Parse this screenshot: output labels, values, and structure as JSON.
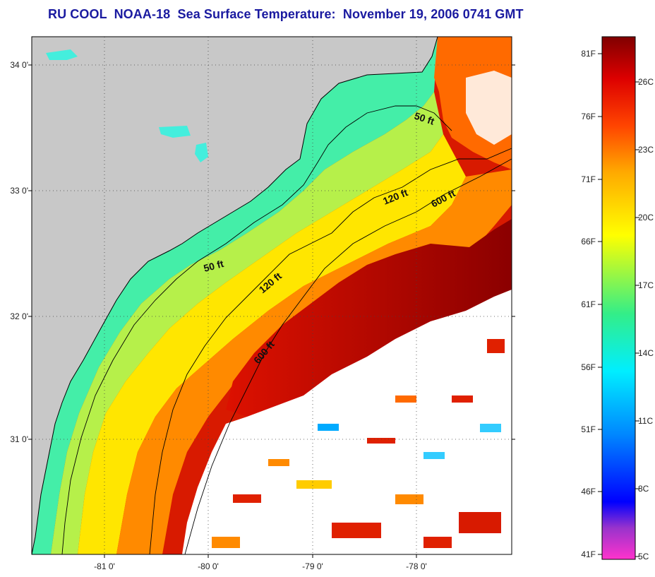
{
  "title": "RU COOL  NOAA-18  Sea Surface Temperature:  November 19, 2006 0741 GMT",
  "map": {
    "lat_labels": [
      "34 0'",
      "33 0'",
      "32 0'",
      "31 0'"
    ],
    "lon_labels": [
      "-81 0'",
      "-80 0'",
      "-79 0'",
      "-78 0'"
    ],
    "isobath_labels": {
      "ft50_north": "50 ft",
      "ft50_south": "50 ft",
      "ft120_north": "120 ft",
      "ft120_south": "120 ft",
      "ft600_north": "600 ft",
      "ft600_south": "600 ft"
    },
    "colors": {
      "land": "#c8c8c8",
      "cloud": "#ffffff",
      "coastline": "#000000"
    }
  },
  "colorbar": {
    "fahrenheit_labels": [
      "81F",
      "76F",
      "71F",
      "66F",
      "61F",
      "56F",
      "51F",
      "46F",
      "41F"
    ],
    "celsius_labels": [
      "26C",
      "23C",
      "20C",
      "17C",
      "14C",
      "11C",
      "8C",
      "5C"
    ],
    "gradient_colors": [
      "#ff33cc",
      "#9933cc",
      "#0000ff",
      "#0088ff",
      "#00eeff",
      "#33ee88",
      "#ffff00",
      "#ffaa00",
      "#ff4400",
      "#dd0000",
      "#800000"
    ]
  }
}
